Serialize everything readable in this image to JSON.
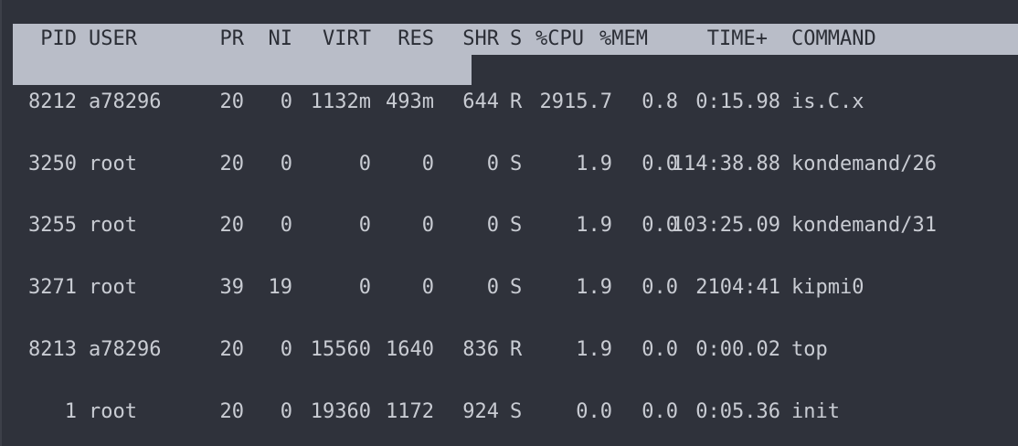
{
  "header": {
    "pid": "PID",
    "user": "USER",
    "pr": "PR",
    "ni": "NI",
    "virt": "VIRT",
    "res": "RES",
    "shr": "SHR",
    "s": "S",
    "cpu": "%CPU",
    "mem": "%MEM",
    "time": "TIME+",
    "command": "COMMAND"
  },
  "processes": [
    {
      "pid": "8212",
      "user": "a78296",
      "pr": "20",
      "ni": "0",
      "virt": "1132m",
      "res": "493m",
      "shr": "644",
      "s": "R",
      "cpu": "2915.7",
      "mem": "0.8",
      "time": "0:15.98",
      "command": "is.C.x"
    },
    {
      "pid": "3250",
      "user": "root",
      "pr": "20",
      "ni": "0",
      "virt": "0",
      "res": "0",
      "shr": "0",
      "s": "S",
      "cpu": "1.9",
      "mem": "0.0",
      "time": "114:38.88",
      "command": "kondemand/26"
    },
    {
      "pid": "3255",
      "user": "root",
      "pr": "20",
      "ni": "0",
      "virt": "0",
      "res": "0",
      "shr": "0",
      "s": "S",
      "cpu": "1.9",
      "mem": "0.0",
      "time": "103:25.09",
      "command": "kondemand/31"
    },
    {
      "pid": "3271",
      "user": "root",
      "pr": "39",
      "ni": "19",
      "virt": "0",
      "res": "0",
      "shr": "0",
      "s": "S",
      "cpu": "1.9",
      "mem": "0.0",
      "time": "2104:41",
      "command": "kipmi0"
    },
    {
      "pid": "8213",
      "user": "a78296",
      "pr": "20",
      "ni": "0",
      "virt": "15560",
      "res": "1640",
      "shr": "836",
      "s": "R",
      "cpu": "1.9",
      "mem": "0.0",
      "time": "0:00.02",
      "command": "top"
    },
    {
      "pid": "1",
      "user": "root",
      "pr": "20",
      "ni": "0",
      "virt": "19360",
      "res": "1172",
      "shr": "924",
      "s": "S",
      "cpu": "0.0",
      "mem": "0.0",
      "time": "0:05.36",
      "command": "init"
    }
  ],
  "colors": {
    "background": "#2f323b",
    "text": "#c9ccd3",
    "header_bg": "#b9bdc8",
    "header_text": "#2b2e36"
  }
}
